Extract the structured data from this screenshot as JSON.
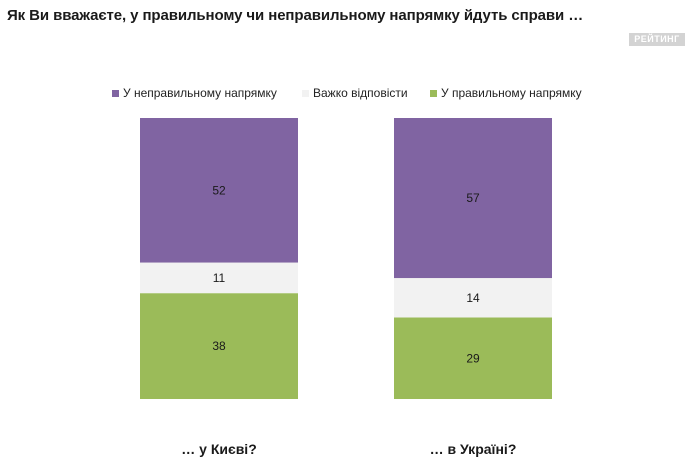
{
  "title": "Як Ви вважаєте, у правильному чи неправильному напрямку йдуть справи …",
  "brand": "РЕЙТИНГ",
  "chart_data": {
    "type": "bar",
    "stacked": true,
    "percent_stacked": true,
    "categories": [
      "… у Києві?",
      "… в Україні?"
    ],
    "series": [
      {
        "name": "У неправильному напрямку",
        "values": [
          52,
          57
        ],
        "color": "#8064a2"
      },
      {
        "name": "Важко відповісти",
        "values": [
          11,
          14
        ],
        "color": "#f2f2f2"
      },
      {
        "name": "У правильному напрямку",
        "values": [
          38,
          29
        ],
        "color": "#9bbb59"
      }
    ],
    "ylim": [
      0,
      100
    ],
    "grid": false,
    "legend": "top-center",
    "data_labels": true
  }
}
